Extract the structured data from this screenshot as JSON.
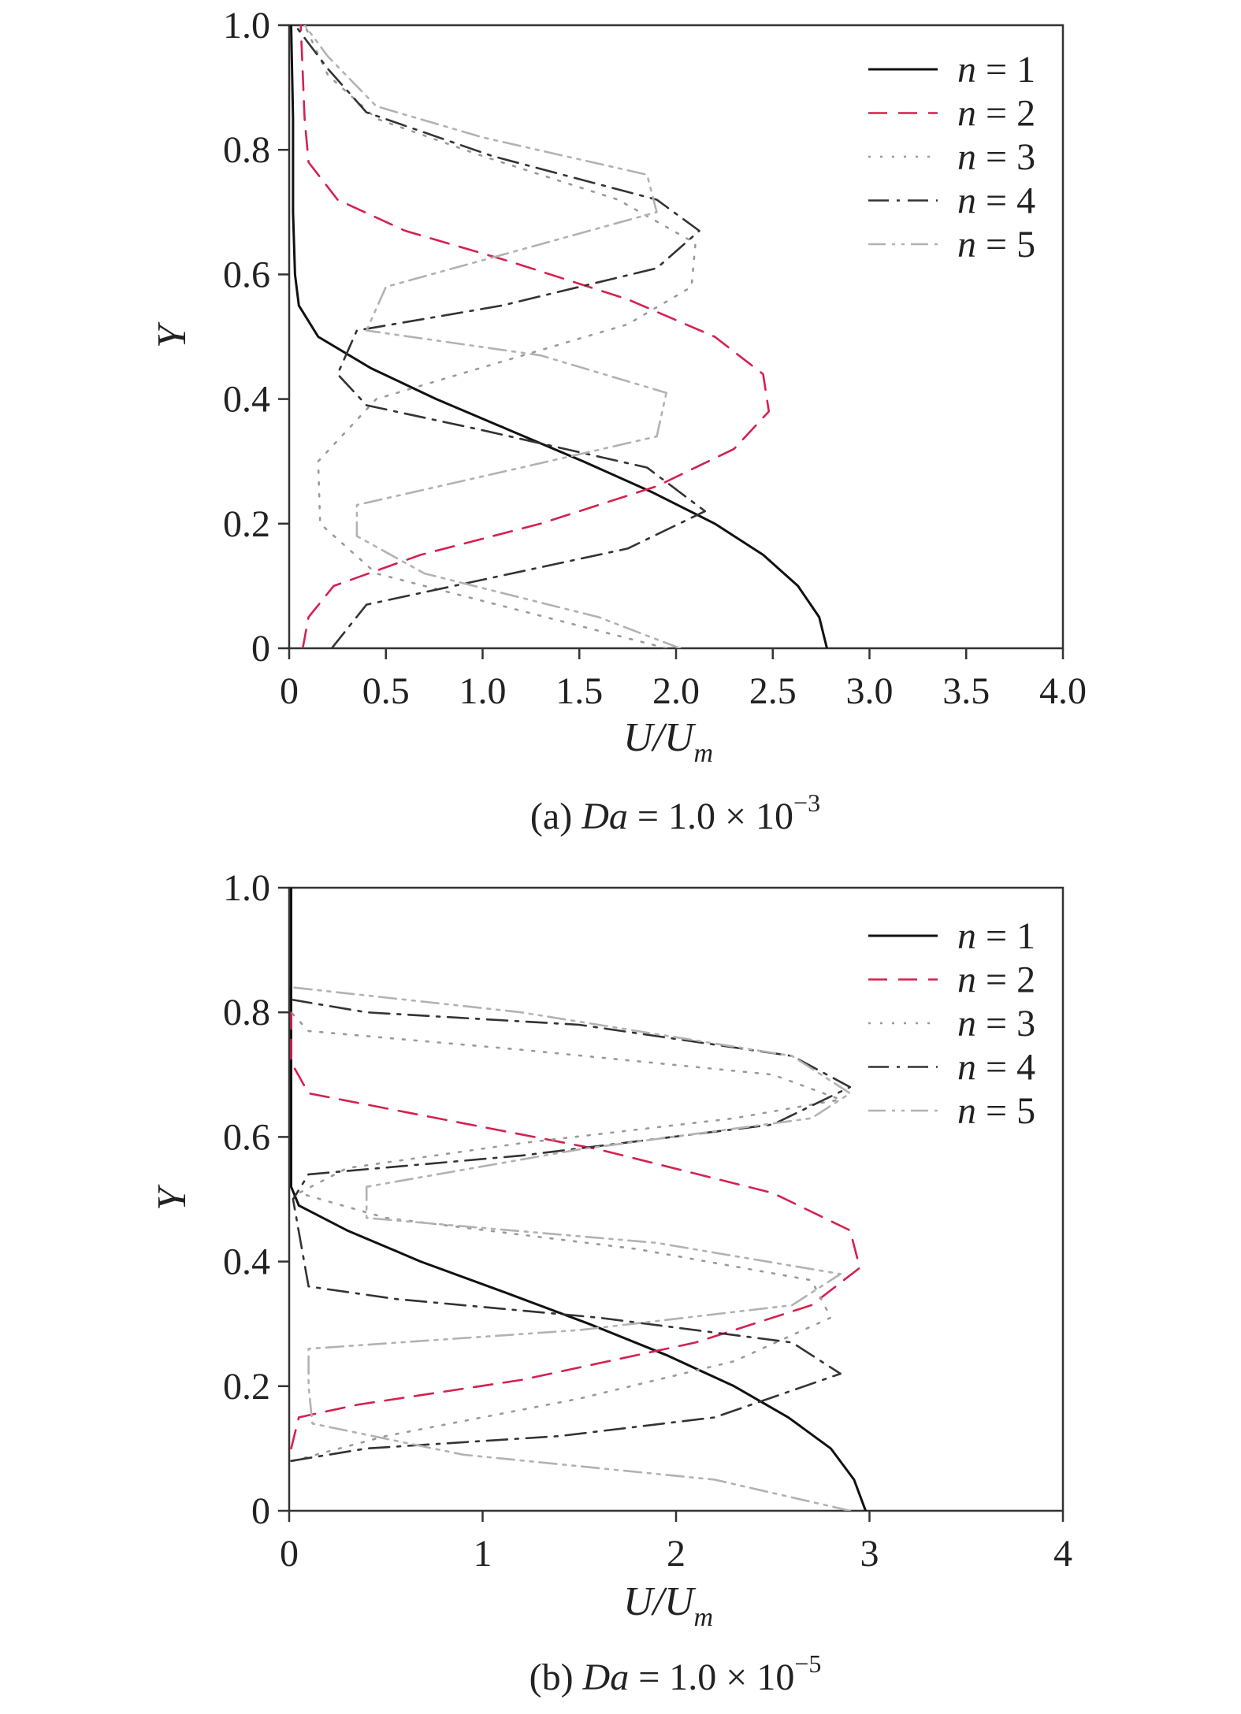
{
  "chart_data": [
    {
      "type": "line",
      "caption": {
        "prefix": "(a) ",
        "var": "Da",
        "middle": " = 1.0 × 10",
        "exp": "−3"
      },
      "xlabel": {
        "main": "U/U",
        "sub": "m"
      },
      "ylabel": "Y",
      "xlim": [
        0,
        4
      ],
      "ylim": [
        0,
        1
      ],
      "x_ticks": [
        "0",
        "0.5",
        "1.0",
        "1.5",
        "2.0",
        "2.5",
        "3.0",
        "3.5",
        "4.0"
      ],
      "x_tick_values": [
        0,
        0.5,
        1.0,
        1.5,
        2.0,
        2.5,
        3.0,
        3.5,
        4.0
      ],
      "y_ticks": [
        "0",
        "0.2",
        "0.4",
        "0.6",
        "0.8",
        "1.0"
      ],
      "y_tick_values": [
        0,
        0.2,
        0.4,
        0.6,
        0.8,
        1.0
      ],
      "legend_position": "top-right",
      "series": [
        {
          "name": "n = 1",
          "var": "n",
          "label": " = 1",
          "color": "#111111",
          "dash": "none",
          "points": [
            [
              2.78,
              0
            ],
            [
              2.74,
              0.05
            ],
            [
              2.63,
              0.1
            ],
            [
              2.45,
              0.15
            ],
            [
              2.2,
              0.2
            ],
            [
              1.88,
              0.25
            ],
            [
              1.52,
              0.3
            ],
            [
              1.14,
              0.35
            ],
            [
              0.76,
              0.4
            ],
            [
              0.42,
              0.45
            ],
            [
              0.15,
              0.5
            ],
            [
              0.05,
              0.55
            ],
            [
              0.03,
              0.6
            ],
            [
              0.02,
              0.7
            ],
            [
              0.02,
              0.85
            ],
            [
              0.01,
              1.0
            ]
          ]
        },
        {
          "name": "n = 2",
          "var": "n",
          "label": " = 2",
          "color": "#d6204f",
          "dash": "24,14",
          "points": [
            [
              0.07,
              0
            ],
            [
              0.1,
              0.05
            ],
            [
              0.23,
              0.1
            ],
            [
              0.68,
              0.15
            ],
            [
              1.3,
              0.2
            ],
            [
              1.9,
              0.26
            ],
            [
              2.3,
              0.32
            ],
            [
              2.48,
              0.38
            ],
            [
              2.45,
              0.44
            ],
            [
              2.2,
              0.5
            ],
            [
              1.75,
              0.56
            ],
            [
              1.15,
              0.62
            ],
            [
              0.6,
              0.67
            ],
            [
              0.25,
              0.72
            ],
            [
              0.1,
              0.78
            ],
            [
              0.08,
              0.85
            ],
            [
              0.06,
              1.0
            ]
          ]
        },
        {
          "name": "n = 3",
          "var": "n",
          "label": " = 3",
          "color": "#9a9a9a",
          "dash": "3,12",
          "points": [
            [
              1.95,
              0
            ],
            [
              1.2,
              0.06
            ],
            [
              0.45,
              0.12
            ],
            [
              0.16,
              0.2
            ],
            [
              0.15,
              0.3
            ],
            [
              0.45,
              0.4
            ],
            [
              1.1,
              0.46
            ],
            [
              1.75,
              0.52
            ],
            [
              2.08,
              0.58
            ],
            [
              2.1,
              0.65
            ],
            [
              1.7,
              0.72
            ],
            [
              1.0,
              0.79
            ],
            [
              0.45,
              0.85
            ],
            [
              0.2,
              0.92
            ],
            [
              0.08,
              1.0
            ]
          ]
        },
        {
          "name": "n = 4",
          "var": "n",
          "label": " = 4",
          "color": "#333333",
          "dash": "26,10,4,10",
          "points": [
            [
              0.22,
              0
            ],
            [
              0.4,
              0.07
            ],
            [
              1.0,
              0.11
            ],
            [
              1.75,
              0.16
            ],
            [
              2.15,
              0.22
            ],
            [
              1.85,
              0.29
            ],
            [
              1.0,
              0.35
            ],
            [
              0.4,
              0.39
            ],
            [
              0.25,
              0.44
            ],
            [
              0.35,
              0.51
            ],
            [
              1.1,
              0.55
            ],
            [
              1.9,
              0.61
            ],
            [
              2.12,
              0.67
            ],
            [
              1.9,
              0.72
            ],
            [
              1.05,
              0.79
            ],
            [
              0.4,
              0.86
            ],
            [
              0.2,
              0.93
            ],
            [
              0.03,
              1.0
            ]
          ]
        },
        {
          "name": "n = 5",
          "var": "n",
          "label": " = 5",
          "color": "#b2b2b2",
          "dash": "22,8,4,8,4,8",
          "points": [
            [
              2.02,
              0
            ],
            [
              1.6,
              0.05
            ],
            [
              0.7,
              0.12
            ],
            [
              0.35,
              0.18
            ],
            [
              0.35,
              0.23
            ],
            [
              1.2,
              0.29
            ],
            [
              1.9,
              0.34
            ],
            [
              1.95,
              0.41
            ],
            [
              1.3,
              0.47
            ],
            [
              0.4,
              0.51
            ],
            [
              0.5,
              0.58
            ],
            [
              1.2,
              0.64
            ],
            [
              1.9,
              0.7
            ],
            [
              1.85,
              0.76
            ],
            [
              1.0,
              0.82
            ],
            [
              0.45,
              0.87
            ],
            [
              0.2,
              0.95
            ],
            [
              0.08,
              1.0
            ]
          ]
        }
      ]
    },
    {
      "type": "line",
      "caption": {
        "prefix": "(b) ",
        "var": "Da",
        "middle": " = 1.0 × 10",
        "exp": "−5"
      },
      "xlabel": {
        "main": "U/U",
        "sub": "m"
      },
      "ylabel": "Y",
      "xlim": [
        0,
        4
      ],
      "ylim": [
        0,
        1
      ],
      "x_ticks": [
        "0",
        "1",
        "2",
        "3",
        "4"
      ],
      "x_tick_values": [
        0,
        1,
        2,
        3,
        4
      ],
      "y_ticks": [
        "0",
        "0.2",
        "0.4",
        "0.6",
        "0.8",
        "1.0"
      ],
      "y_tick_values": [
        0,
        0.2,
        0.4,
        0.6,
        0.8,
        1.0
      ],
      "legend_position": "top-right",
      "series": [
        {
          "name": "n = 1",
          "var": "n",
          "label": " = 1",
          "color": "#111111",
          "dash": "none",
          "points": [
            [
              2.98,
              0
            ],
            [
              2.92,
              0.05
            ],
            [
              2.8,
              0.1
            ],
            [
              2.58,
              0.15
            ],
            [
              2.3,
              0.2
            ],
            [
              1.95,
              0.25
            ],
            [
              1.55,
              0.3
            ],
            [
              1.12,
              0.35
            ],
            [
              0.68,
              0.4
            ],
            [
              0.3,
              0.45
            ],
            [
              0.05,
              0.49
            ],
            [
              0.01,
              0.52
            ],
            [
              0.01,
              0.7
            ],
            [
              0.01,
              1.0
            ]
          ]
        },
        {
          "name": "n = 2",
          "var": "n",
          "label": " = 2",
          "color": "#d6204f",
          "dash": "24,14",
          "points": [
            [
              0.01,
              0.1
            ],
            [
              0.05,
              0.15
            ],
            [
              0.35,
              0.17
            ],
            [
              1.2,
              0.21
            ],
            [
              2.1,
              0.27
            ],
            [
              2.7,
              0.33
            ],
            [
              2.95,
              0.39
            ],
            [
              2.9,
              0.45
            ],
            [
              2.5,
              0.51
            ],
            [
              1.6,
              0.58
            ],
            [
              0.6,
              0.64
            ],
            [
              0.1,
              0.67
            ],
            [
              0.01,
              0.72
            ],
            [
              0.01,
              0.8
            ]
          ]
        },
        {
          "name": "n = 3",
          "var": "n",
          "label": " = 3",
          "color": "#9a9a9a",
          "dash": "3,12",
          "points": [
            [
              0.02,
              0.08
            ],
            [
              0.5,
              0.12
            ],
            [
              1.5,
              0.18
            ],
            [
              2.3,
              0.24
            ],
            [
              2.8,
              0.31
            ],
            [
              2.7,
              0.37
            ],
            [
              1.8,
              0.42
            ],
            [
              0.5,
              0.47
            ],
            [
              0.05,
              0.51
            ],
            [
              0.3,
              0.55
            ],
            [
              1.2,
              0.59
            ],
            [
              2.3,
              0.63
            ],
            [
              2.85,
              0.66
            ],
            [
              2.5,
              0.7
            ],
            [
              1.2,
              0.74
            ],
            [
              0.1,
              0.77
            ],
            [
              0.01,
              0.8
            ]
          ]
        },
        {
          "name": "n = 4",
          "var": "n",
          "label": " = 4",
          "color": "#333333",
          "dash": "26,10,4,10",
          "points": [
            [
              0.01,
              0.08
            ],
            [
              0.4,
              0.1
            ],
            [
              1.4,
              0.12
            ],
            [
              2.2,
              0.15
            ],
            [
              2.85,
              0.22
            ],
            [
              2.6,
              0.27
            ],
            [
              1.6,
              0.31
            ],
            [
              0.55,
              0.34
            ],
            [
              0.1,
              0.36
            ],
            [
              0.02,
              0.5
            ],
            [
              0.1,
              0.54
            ],
            [
              1.2,
              0.57
            ],
            [
              2.5,
              0.62
            ],
            [
              2.9,
              0.68
            ],
            [
              2.6,
              0.73
            ],
            [
              1.5,
              0.78
            ],
            [
              0.4,
              0.8
            ],
            [
              0.02,
              0.82
            ]
          ]
        },
        {
          "name": "n = 5",
          "var": "n",
          "label": " = 5",
          "color": "#b2b2b2",
          "dash": "22,8,4,8,4,8",
          "points": [
            [
              2.9,
              0
            ],
            [
              2.2,
              0.05
            ],
            [
              0.9,
              0.09
            ],
            [
              0.12,
              0.14
            ],
            [
              0.1,
              0.2
            ],
            [
              0.1,
              0.26
            ],
            [
              1.5,
              0.29
            ],
            [
              2.6,
              0.33
            ],
            [
              2.85,
              0.38
            ],
            [
              1.9,
              0.43
            ],
            [
              0.4,
              0.47
            ],
            [
              0.4,
              0.52
            ],
            [
              1.5,
              0.58
            ],
            [
              2.7,
              0.63
            ],
            [
              2.9,
              0.67
            ],
            [
              2.6,
              0.73
            ],
            [
              1.2,
              0.8
            ],
            [
              0.02,
              0.84
            ]
          ]
        }
      ]
    }
  ]
}
